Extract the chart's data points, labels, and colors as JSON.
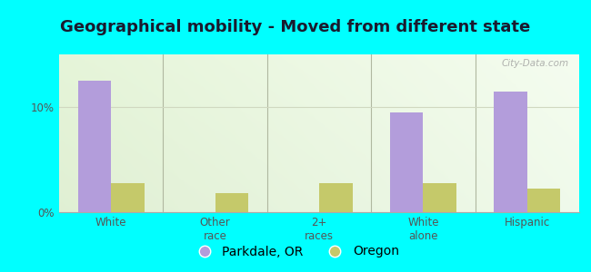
{
  "title": "Geographical mobility - Moved from different state",
  "categories": [
    "White",
    "Other\nrace",
    "2+\nraces",
    "White\nalone",
    "Hispanic"
  ],
  "parkdale_values": [
    12.5,
    0.0,
    0.0,
    9.5,
    11.5
  ],
  "oregon_values": [
    2.8,
    1.8,
    2.8,
    2.8,
    2.2
  ],
  "parkdale_color": "#b39ddb",
  "oregon_color": "#c5c96a",
  "bar_width": 0.32,
  "ylim": [
    0,
    15
  ],
  "ytick_labels": [
    "0%",
    "10%"
  ],
  "ytick_vals": [
    0,
    10
  ],
  "background_color": "#00ffff",
  "grad_top_color": "#f5fbee",
  "grad_bottom_color": "#e5f5d5",
  "grad_right_color": "#f8fdf5",
  "grid_color": "#d0d8c0",
  "title_fontsize": 13,
  "tick_fontsize": 8.5,
  "legend_fontsize": 10,
  "watermark": "City-Data.com",
  "legend_parkdale": "Parkdale, OR",
  "legend_oregon": "Oregon",
  "divider_color": "#b0b8a0",
  "title_color": "#1a1a2e"
}
